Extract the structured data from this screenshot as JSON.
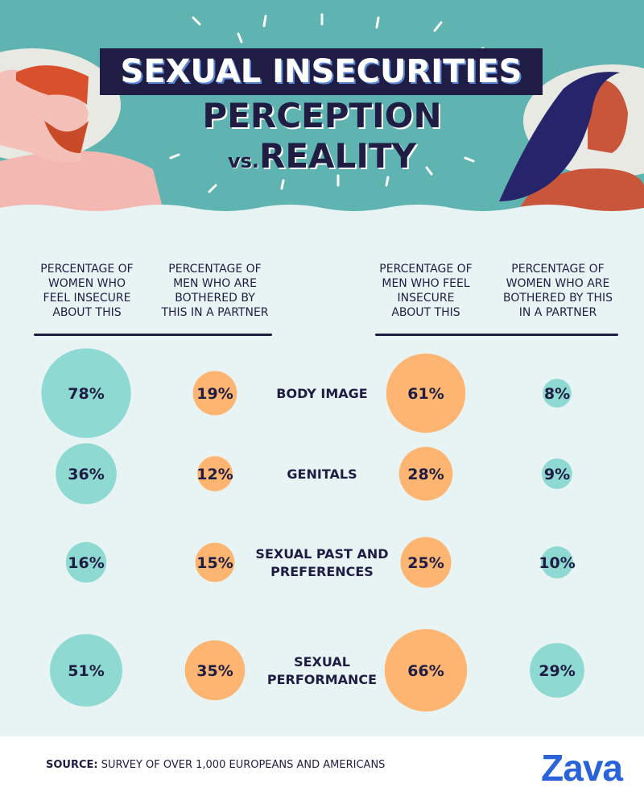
{
  "title": {
    "line1": "SEXUAL INSECURITIES",
    "line2": "PERCEPTION",
    "vs": "vs.",
    "line3": "REALITY"
  },
  "columns": [
    "PERCENTAGE OF WOMEN WHO FEEL INSECURE ABOUT THIS",
    "PERCENTAGE OF MEN WHO ARE BOTHERED BY THIS IN A PARTNER",
    "PERCENTAGE OF MEN WHO FEEL INSECURE ABOUT THIS",
    "PERCENTAGE OF WOMEN WHO ARE BOTHERED BY THIS IN A PARTNER"
  ],
  "chart_data": {
    "type": "bubble",
    "categories": [
      "BODY IMAGE",
      "GENITALS",
      "SEXUAL PAST AND PREFERENCES",
      "SEXUAL PERFORMANCE"
    ],
    "series": [
      {
        "name": "PERCENTAGE OF WOMEN WHO FEEL INSECURE ABOUT THIS",
        "values": [
          78,
          36,
          16,
          51
        ],
        "color": "#8fd9d3"
      },
      {
        "name": "PERCENTAGE OF MEN WHO ARE BOTHERED BY THIS IN A PARTNER",
        "values": [
          19,
          12,
          15,
          35
        ],
        "color": "#fdb571"
      },
      {
        "name": "PERCENTAGE OF MEN WHO FEEL INSECURE ABOUT THIS",
        "values": [
          61,
          28,
          25,
          66
        ],
        "color": "#fdb571"
      },
      {
        "name": "PERCENTAGE OF WOMEN WHO ARE BOTHERED BY THIS IN A PARTNER",
        "values": [
          8,
          9,
          10,
          29
        ],
        "color": "#8fd9d3"
      }
    ],
    "value_suffix": "%"
  },
  "labels": {
    "BODY IMAGE": [
      "BODY IMAGE"
    ],
    "GENITALS": [
      "GENITALS"
    ],
    "SEXUAL PAST AND PREFERENCES": [
      "SEXUAL PAST AND",
      "PREFERENCES"
    ],
    "SEXUAL PERFORMANCE": [
      "SEXUAL",
      "PERFORMANCE"
    ]
  },
  "footer": {
    "source_label": "SOURCE:",
    "source_text": " SURVEY OF OVER 1,000 EUROPEANS AND AMERICANS",
    "logo": "Zava"
  },
  "colors": {
    "navy": "#1f1d44",
    "teal": "#8fd9d3",
    "orange": "#fdb571",
    "header_bg": "#5fb3b0",
    "page_bg": "#e8f4f4",
    "logo_blue": "#2a63d9"
  }
}
